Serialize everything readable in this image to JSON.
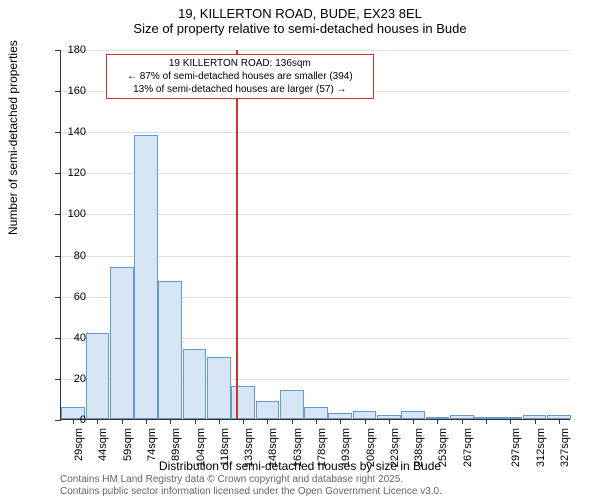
{
  "title": {
    "address": "19, KILLERTON ROAD, BUDE, EX23 8EL",
    "subtitle": "Size of property relative to semi-detached houses in Bude"
  },
  "chart": {
    "type": "histogram",
    "background_color": "#ffffff",
    "bar_fill": "#d6e6f5",
    "bar_stroke": "#6699cc",
    "grid_color": "#dddddd",
    "axis_color": "#333333",
    "reference_line_color": "#cc3333",
    "info_box_border": "#cc3333",
    "ylim": [
      0,
      180
    ],
    "yticks": [
      0,
      20,
      40,
      60,
      80,
      100,
      120,
      140,
      160,
      180
    ],
    "x_labels": [
      "29sqm",
      "44sqm",
      "59sqm",
      "74sqm",
      "89sqm",
      "104sqm",
      "118sqm",
      "133sqm",
      "148sqm",
      "163sqm",
      "178sqm",
      "193sqm",
      "208sqm",
      "223sqm",
      "238sqm",
      "253sqm",
      "267sqm",
      "",
      "297sqm",
      "312sqm",
      "327sqm"
    ],
    "bars": [
      6,
      42,
      74,
      138,
      67,
      34,
      30,
      16,
      9,
      14,
      6,
      3,
      4,
      2,
      4,
      1,
      2,
      0,
      0,
      2,
      2
    ],
    "reference_value": 136,
    "reference_percentile_index": 7.2,
    "y_axis_title": "Number of semi-detached properties",
    "x_axis_title": "Distribution of semi-detached houses by size in Bude"
  },
  "info_box": {
    "line1": "19 KILLERTON ROAD: 136sqm",
    "line2": "← 87% of semi-detached houses are smaller (394)",
    "line3": "13% of semi-detached houses are larger (57) →"
  },
  "footer": {
    "line1": "Contains HM Land Registry data © Crown copyright and database right 2025.",
    "line2": "Contains public sector information licensed under the Open Government Licence v3.0."
  }
}
